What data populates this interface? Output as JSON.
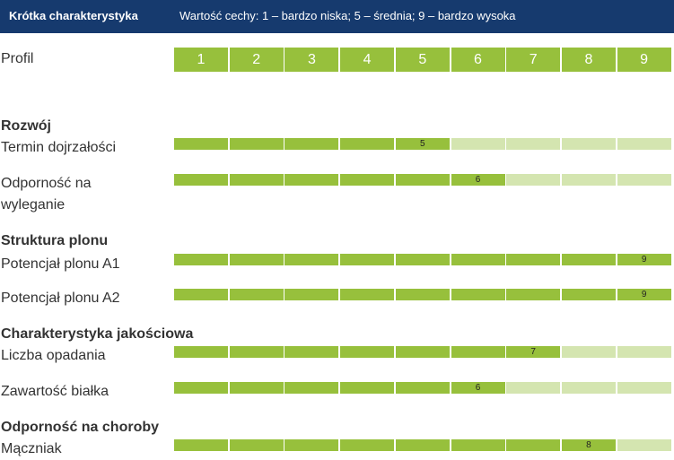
{
  "header": {
    "title": "Krótka charakterystyka",
    "legend": "Wartość cechy: 1 – bardzo niska; 5 – średnia; 9 – bardzo wysoka"
  },
  "profile_label": "Profil",
  "colors": {
    "header_bg": "#163a6e",
    "filled": "#97c03c",
    "empty": "#d4e5b0"
  },
  "chart_data": {
    "type": "bar",
    "title": "Krótka charakterystyka",
    "scale": {
      "min": 1,
      "max": 9,
      "ticks": [
        "1",
        "2",
        "3",
        "4",
        "5",
        "6",
        "7",
        "8",
        "9"
      ]
    },
    "sections": [
      {
        "name": "Rozwój",
        "traits": [
          {
            "label": "Termin dojrzałości",
            "value": 5
          },
          {
            "label": "Odporność na wyleganie",
            "value": 6
          }
        ]
      },
      {
        "name": "Struktura plonu",
        "traits": [
          {
            "label": "Potencjał plonu A1",
            "value": 9
          },
          {
            "label": "Potencjał plonu A2",
            "value": 9
          }
        ]
      },
      {
        "name": "Charakterystyka jakościowa",
        "traits": [
          {
            "label": "Liczba opadania",
            "value": 7
          },
          {
            "label": "Zawartość białka",
            "value": 6
          }
        ]
      },
      {
        "name": "Odporność na choroby",
        "traits": [
          {
            "label": "Mączniak",
            "value": 8
          }
        ]
      }
    ]
  }
}
